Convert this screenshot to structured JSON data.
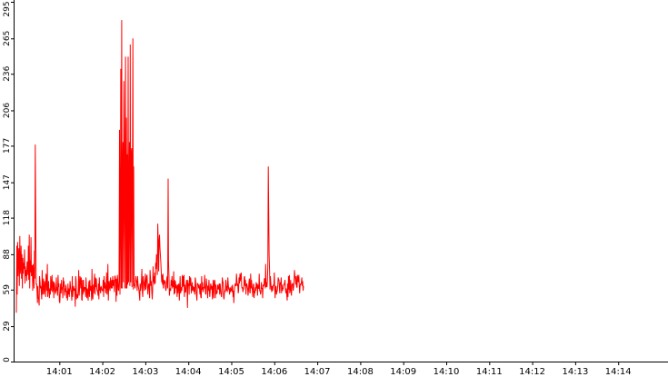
{
  "chart_data": {
    "type": "line",
    "title": "",
    "xlabel": "",
    "ylabel": "",
    "ylim": [
      0,
      295
    ],
    "y_ticks": [
      "0",
      "29",
      "59",
      "88",
      "118",
      "147",
      "177",
      "206",
      "236",
      "265",
      "295"
    ],
    "x_ticks": [
      "14:01",
      "14:02",
      "14:03",
      "14:04",
      "14:05",
      "14:06",
      "14:07",
      "14:08",
      "14:09",
      "14:10",
      "14:11",
      "14:12",
      "14:13",
      "14:14"
    ],
    "grid": false,
    "legend": "none",
    "series": [
      {
        "color": "#ff0000",
        "sample_minutes": 0.01,
        "values": [
          40,
          95,
          55,
          98,
          70,
          89,
          93,
          62,
          103,
          72,
          78,
          95,
          68,
          88,
          60,
          85,
          72,
          81,
          76,
          92,
          64,
          78,
          70,
          75,
          66,
          82,
          80,
          71,
          95,
          67,
          104,
          60,
          83,
          73,
          102,
          70,
          75,
          79,
          58,
          80,
          72,
          60,
          91,
          68,
          178,
          120,
          63,
          64,
          59,
          48,
          62,
          53,
          51,
          46,
          70,
          66,
          60,
          62,
          57,
          51,
          75,
          55,
          62,
          68,
          55,
          57,
          66,
          61,
          53,
          72,
          69,
          58,
          80,
          53,
          60,
          66,
          58,
          52,
          60,
          55,
          70,
          58,
          64,
          71,
          57,
          60,
          66,
          52,
          65,
          63,
          58,
          56,
          57,
          69,
          58,
          61,
          54,
          71,
          61,
          64,
          50,
          48,
          55,
          64,
          56,
          67,
          59,
          61,
          52,
          69,
          61,
          66,
          54,
          60,
          57,
          63,
          60,
          52,
          58,
          50,
          64,
          55,
          60,
          53,
          59,
          66,
          61,
          58,
          57,
          50,
          70,
          53,
          58,
          62,
          58,
          60,
          59,
          45,
          70,
          67,
          51,
          55,
          55,
          52,
          58,
          75,
          54,
          59,
          70,
          67,
          60,
          69,
          51,
          50,
          67,
          55,
          67,
          57,
          61,
          59,
          61,
          53,
          69,
          60,
          52,
          60,
          58,
          50,
          62,
          66,
          53,
          67,
          58,
          62,
          61,
          50,
          76,
          54,
          51,
          63,
          56,
          64,
          72,
          55,
          69,
          61,
          68,
          60,
          58,
          58,
          54,
          64,
          51,
          69,
          58,
          61,
          56,
          62,
          60,
          59,
          58,
          58,
          67,
          53,
          70,
          60,
          65,
          61,
          56,
          63,
          73,
          55,
          62,
          80,
          50,
          65,
          66,
          60,
          58,
          69,
          62,
          60,
          67,
          60,
          70,
          62,
          67,
          64,
          57,
          70,
          70,
          65,
          49,
          68,
          54,
          71,
          66,
          59,
          58,
          66,
          190,
          55,
          120,
          240,
          60,
          280,
          60,
          150,
          180,
          65,
          230,
          185,
          60,
          160,
          250,
          60,
          200,
          60,
          170,
          63,
          250,
          65,
          130,
          180,
          62,
          260,
          65,
          170,
          175,
          61,
          140,
          265,
          59,
          160,
          62,
          63,
          60,
          64,
          70,
          66,
          66,
          58,
          70,
          63,
          61,
          59,
          55,
          50,
          64,
          58,
          61,
          66,
          76,
          57,
          53,
          70,
          66,
          64,
          58,
          64,
          72,
          59,
          62,
          70,
          71,
          61,
          55,
          61,
          64,
          60,
          52,
          75,
          68,
          62,
          66,
          57,
          51,
          58,
          78,
          65,
          70,
          63,
          73,
          64,
          81,
          76,
          88,
          80,
          71,
          113,
          98,
          74,
          99,
          104,
          93,
          87,
          82,
          74,
          65,
          71,
          63,
          72,
          60,
          63,
          67,
          64,
          66,
          60,
          58,
          62,
          68,
          70,
          60,
          150,
          83,
          70,
          54,
          60,
          59,
          58,
          67,
          62,
          70,
          60,
          66,
          61,
          74,
          55,
          67,
          56,
          66,
          60,
          63,
          61,
          53,
          63,
          56,
          62,
          64,
          50,
          58,
          70,
          56,
          58,
          61,
          58,
          71,
          61,
          70,
          62,
          71,
          53,
          63,
          57,
          57,
          62,
          67,
          63,
          44,
          67,
          62,
          64,
          55,
          70,
          62,
          69,
          67,
          56,
          61,
          65,
          58,
          62,
          60,
          57,
          61,
          55,
          69,
          67,
          59,
          54,
          50,
          64,
          64,
          63,
          60,
          63,
          60,
          55,
          64,
          53,
          52,
          70,
          59,
          65,
          57,
          59,
          61,
          60,
          71,
          64,
          56,
          55,
          68,
          63,
          62,
          52,
          62,
          58,
          67,
          59,
          53,
          58,
          64,
          62,
          59,
          62,
          51,
          61,
          67,
          52,
          62,
          67,
          66,
          52,
          63,
          55,
          57,
          56,
          63,
          62,
          59,
          62,
          64,
          55,
          64,
          59,
          56,
          53,
          57,
          69,
          66,
          65,
          53,
          51,
          56,
          58,
          57,
          67,
          65,
          58,
          62,
          57,
          69,
          63,
          59,
          60,
          55,
          61,
          57,
          59,
          58,
          62,
          57,
          63,
          53,
          58,
          48,
          58,
          61,
          64,
          63,
          62,
          72,
          67,
          62,
          64,
          56,
          58,
          69,
          64,
          72,
          66,
          70,
          73,
          62,
          60,
          61,
          57,
          59,
          60,
          69,
          70,
          62,
          67,
          55,
          63,
          64,
          62,
          60,
          54,
          58,
          65,
          68,
          57,
          56,
          72,
          60,
          67,
          62,
          58,
          53,
          62,
          64,
          52,
          58,
          56,
          61,
          58,
          65,
          60,
          64,
          54,
          63,
          60,
          60,
          72,
          58,
          58,
          55,
          57,
          65,
          60,
          60,
          52,
          63,
          62,
          62,
          68,
          68,
          60,
          80,
          61,
          65,
          61,
          66,
          78,
          160,
          120,
          88,
          75,
          59,
          70,
          64,
          60,
          57,
          62,
          58,
          61,
          63,
          62,
          73,
          60,
          52,
          61,
          62,
          55,
          57,
          58,
          62,
          69,
          67,
          67,
          59,
          56,
          65,
          63,
          69,
          56,
          63,
          58,
          60,
          60,
          63,
          63,
          65,
          67,
          59,
          56,
          60,
          55,
          50,
          64,
          53,
          70,
          59,
          71,
          56,
          59,
          67,
          58,
          54,
          63,
          64,
          64,
          58,
          61,
          66,
          75,
          70,
          68,
          63,
          70,
          61,
          61,
          71,
          68,
          65,
          71,
          64,
          56,
          62,
          64,
          63,
          65,
          69,
          62,
          66,
          58,
          62
        ]
      }
    ]
  }
}
